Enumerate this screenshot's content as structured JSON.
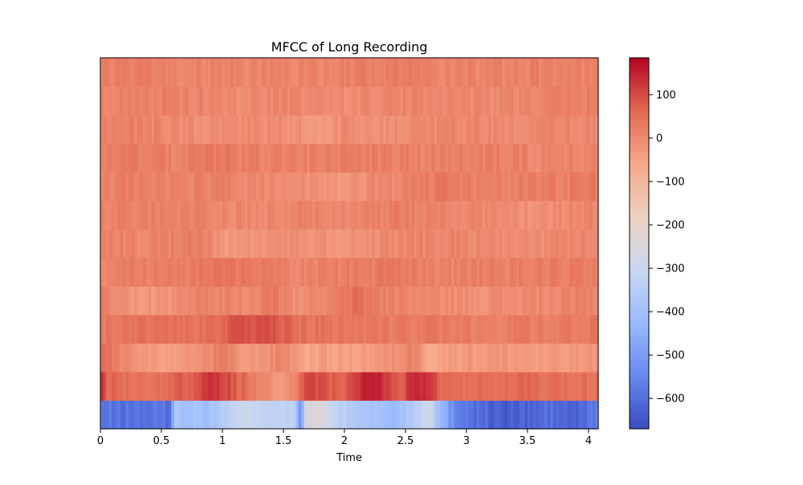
{
  "chart_data": {
    "type": "heatmap",
    "title": "MFCC of Long Recording",
    "xlabel": "Time",
    "ylabel": "",
    "xlim": [
      0,
      4.08
    ],
    "x_ticks": [
      0,
      0.5,
      1,
      1.5,
      2,
      2.5,
      3,
      3.5,
      4
    ],
    "x_tick_labels": [
      "0",
      "0.5",
      "1",
      "1.5",
      "2",
      "2.5",
      "3",
      "3.5",
      "4"
    ],
    "y_ticks_shown": false,
    "n_coefficients": 13,
    "n_frames": 176,
    "colormap": "coolwarm",
    "colormap_stops": [
      "#3b4cc0",
      "#6788ee",
      "#9abbff",
      "#c9d7f0",
      "#edd1c2",
      "#f7a889",
      "#e26952",
      "#b40426"
    ],
    "color_range": [
      -670,
      185
    ],
    "colorbar_ticks": [
      100,
      0,
      -100,
      -200,
      -300,
      -400,
      -500,
      -600
    ],
    "colorbar_tick_labels": [
      "100",
      "0",
      "−100",
      "−200",
      "−300",
      "−400",
      "−500",
      "−600"
    ],
    "coefficient_profiles": [
      {
        "coefficient": 0,
        "segments": [
          [
            0.0,
            -590
          ],
          [
            0.58,
            -590
          ],
          [
            0.6,
            -380
          ],
          [
            0.9,
            -400
          ],
          [
            1.0,
            -350
          ],
          [
            1.1,
            -330
          ],
          [
            1.2,
            -290
          ],
          [
            1.4,
            -320
          ],
          [
            1.6,
            -340
          ],
          [
            1.64,
            -560
          ],
          [
            1.68,
            -260
          ],
          [
            1.8,
            -240
          ],
          [
            1.9,
            -310
          ],
          [
            2.0,
            -350
          ],
          [
            2.2,
            -380
          ],
          [
            2.4,
            -420
          ],
          [
            2.5,
            -380
          ],
          [
            2.6,
            -330
          ],
          [
            2.7,
            -260
          ],
          [
            2.78,
            -420
          ],
          [
            2.9,
            -540
          ],
          [
            3.1,
            -600
          ],
          [
            3.3,
            -640
          ],
          [
            3.5,
            -620
          ],
          [
            3.7,
            -600
          ],
          [
            3.9,
            -630
          ],
          [
            4.08,
            -560
          ]
        ]
      },
      {
        "coefficient": 1,
        "segments": [
          [
            0.0,
            140
          ],
          [
            0.05,
            60
          ],
          [
            0.4,
            45
          ],
          [
            0.6,
            60
          ],
          [
            0.8,
            90
          ],
          [
            0.9,
            125
          ],
          [
            1.0,
            115
          ],
          [
            1.2,
            45
          ],
          [
            1.5,
            -40
          ],
          [
            1.6,
            10
          ],
          [
            1.7,
            120
          ],
          [
            1.8,
            90
          ],
          [
            2.0,
            60
          ],
          [
            2.2,
            170
          ],
          [
            2.3,
            140
          ],
          [
            2.45,
            60
          ],
          [
            2.55,
            135
          ],
          [
            2.7,
            125
          ],
          [
            2.8,
            50
          ],
          [
            3.2,
            55
          ],
          [
            3.6,
            55
          ],
          [
            4.0,
            45
          ]
        ]
      },
      {
        "coefficient": 2,
        "segments": [
          [
            0.0,
            70
          ],
          [
            0.2,
            -10
          ],
          [
            0.6,
            -50
          ],
          [
            0.8,
            -20
          ],
          [
            1.0,
            20
          ],
          [
            1.2,
            -40
          ],
          [
            1.5,
            10
          ],
          [
            1.7,
            -60
          ],
          [
            1.8,
            -40
          ],
          [
            2.0,
            -50
          ],
          [
            2.4,
            -20
          ],
          [
            2.6,
            20
          ],
          [
            2.7,
            -70
          ],
          [
            2.9,
            -30
          ],
          [
            3.3,
            -25
          ],
          [
            3.6,
            -40
          ],
          [
            4.0,
            -30
          ]
        ]
      },
      {
        "coefficient": 3,
        "segments": [
          [
            0.0,
            30
          ],
          [
            0.4,
            50
          ],
          [
            0.8,
            40
          ],
          [
            1.1,
            80
          ],
          [
            1.4,
            90
          ],
          [
            1.6,
            50
          ],
          [
            2.0,
            40
          ],
          [
            2.3,
            30
          ],
          [
            2.6,
            35
          ],
          [
            3.0,
            20
          ],
          [
            3.5,
            25
          ],
          [
            4.0,
            30
          ]
        ]
      },
      {
        "coefficient": 4,
        "segments": [
          [
            0.0,
            25
          ],
          [
            0.2,
            -20
          ],
          [
            0.5,
            -30
          ],
          [
            0.8,
            10
          ],
          [
            1.2,
            0
          ],
          [
            1.4,
            30
          ],
          [
            1.6,
            -10
          ],
          [
            1.9,
            10
          ],
          [
            2.1,
            50
          ],
          [
            2.3,
            20
          ],
          [
            2.6,
            0
          ],
          [
            3.0,
            -10
          ],
          [
            3.5,
            -5
          ],
          [
            4.0,
            10
          ]
        ]
      },
      {
        "coefficient": 5,
        "segments": [
          [
            0.0,
            10
          ],
          [
            0.4,
            20
          ],
          [
            0.8,
            30
          ],
          [
            1.2,
            35
          ],
          [
            1.6,
            10
          ],
          [
            2.0,
            20
          ],
          [
            2.4,
            30
          ],
          [
            2.8,
            10
          ],
          [
            3.2,
            20
          ],
          [
            3.6,
            25
          ],
          [
            4.0,
            20
          ]
        ]
      },
      {
        "coefficient": 6,
        "segments": [
          [
            0.0,
            15
          ],
          [
            0.4,
            5
          ],
          [
            0.8,
            25
          ],
          [
            1.0,
            -30
          ],
          [
            1.3,
            -20
          ],
          [
            1.6,
            -10
          ],
          [
            2.0,
            -20
          ],
          [
            2.5,
            0
          ],
          [
            2.9,
            10
          ],
          [
            3.4,
            -10
          ],
          [
            3.8,
            0
          ],
          [
            4.0,
            5
          ]
        ]
      },
      {
        "coefficient": 7,
        "segments": [
          [
            0.0,
            20
          ],
          [
            0.4,
            10
          ],
          [
            0.8,
            15
          ],
          [
            1.2,
            0
          ],
          [
            1.6,
            10
          ],
          [
            2.0,
            5
          ],
          [
            2.4,
            20
          ],
          [
            2.8,
            10
          ],
          [
            3.2,
            0
          ],
          [
            3.6,
            -20
          ],
          [
            4.0,
            10
          ]
        ]
      },
      {
        "coefficient": 8,
        "segments": [
          [
            0.0,
            10
          ],
          [
            0.3,
            25
          ],
          [
            0.6,
            10
          ],
          [
            1.0,
            15
          ],
          [
            1.4,
            -5
          ],
          [
            1.7,
            -15
          ],
          [
            2.0,
            -25
          ],
          [
            2.2,
            -10
          ],
          [
            2.5,
            10
          ],
          [
            2.8,
            25
          ],
          [
            3.2,
            15
          ],
          [
            3.6,
            20
          ],
          [
            4.0,
            25
          ]
        ]
      },
      {
        "coefficient": 9,
        "segments": [
          [
            0.0,
            20
          ],
          [
            0.3,
            30
          ],
          [
            0.6,
            15
          ],
          [
            0.9,
            30
          ],
          [
            1.2,
            20
          ],
          [
            1.6,
            15
          ],
          [
            2.0,
            25
          ],
          [
            2.4,
            20
          ],
          [
            2.8,
            15
          ],
          [
            3.2,
            20
          ],
          [
            3.6,
            5
          ],
          [
            4.0,
            10
          ]
        ]
      },
      {
        "coefficient": 10,
        "segments": [
          [
            0.0,
            15
          ],
          [
            0.4,
            10
          ],
          [
            0.8,
            -10
          ],
          [
            1.2,
            0
          ],
          [
            1.6,
            -10
          ],
          [
            1.8,
            -40
          ],
          [
            2.0,
            -5
          ],
          [
            2.3,
            -15
          ],
          [
            2.6,
            0
          ],
          [
            3.0,
            5
          ],
          [
            3.4,
            -10
          ],
          [
            3.8,
            5
          ],
          [
            4.0,
            0
          ]
        ]
      },
      {
        "coefficient": 11,
        "segments": [
          [
            0.0,
            10
          ],
          [
            0.4,
            15
          ],
          [
            0.8,
            10
          ],
          [
            1.2,
            0
          ],
          [
            1.6,
            5
          ],
          [
            2.0,
            -5
          ],
          [
            2.4,
            5
          ],
          [
            2.8,
            10
          ],
          [
            3.2,
            0
          ],
          [
            3.6,
            10
          ],
          [
            4.0,
            20
          ]
        ]
      },
      {
        "coefficient": 12,
        "segments": [
          [
            0.0,
            20
          ],
          [
            0.4,
            15
          ],
          [
            0.8,
            10
          ],
          [
            1.2,
            5
          ],
          [
            1.6,
            10
          ],
          [
            2.0,
            15
          ],
          [
            2.4,
            25
          ],
          [
            2.8,
            10
          ],
          [
            3.2,
            10
          ],
          [
            3.6,
            15
          ],
          [
            4.0,
            15
          ]
        ]
      }
    ]
  }
}
